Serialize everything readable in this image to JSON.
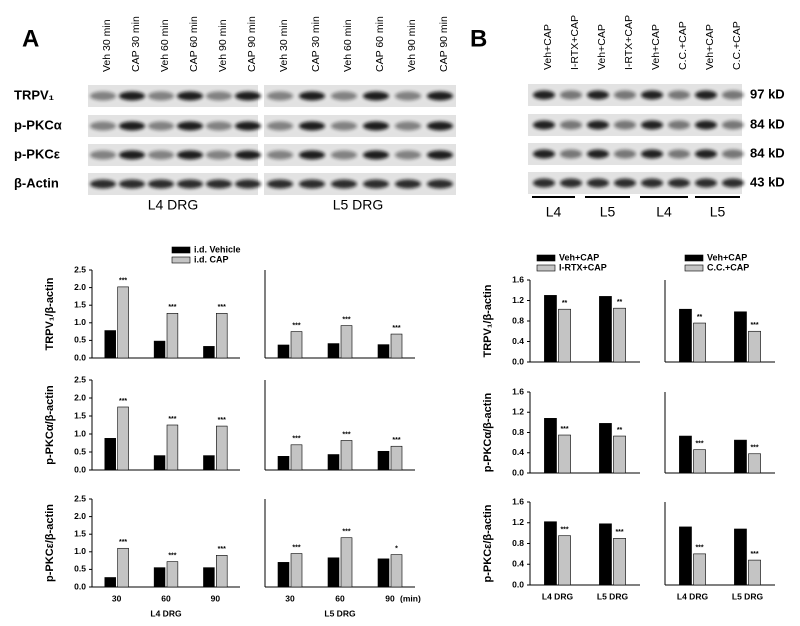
{
  "figure": {
    "panel_a": {
      "letter": "A",
      "lanes": [
        "Veh 30 min",
        "CAP 30 min",
        "Veh 60 min",
        "CAP 60 min",
        "Veh 90 min",
        "CAP 90 min",
        "Veh 30 min",
        "CAP 30 min",
        "Veh 60 min",
        "CAP 60 min",
        "Veh 90 min",
        "CAP 90 min"
      ],
      "rows": [
        "TRPV₁",
        "p-PKCα",
        "p-PKCε",
        "β-Actin"
      ],
      "groups": [
        "L4 DRG",
        "L5 DRG"
      ]
    },
    "panel_b": {
      "letter": "B",
      "lanes": [
        "Veh+CAP",
        "I-RTX+CAP",
        "Veh+CAP",
        "I-RTX+CAP",
        "Veh+CAP",
        "C.C.+CAP",
        "Veh+CAP",
        "C.C.+CAP"
      ],
      "sizes": [
        "97 kD",
        "84 kD",
        "84 kD",
        "43 kD"
      ],
      "groups": [
        "L4",
        "L5",
        "L4",
        "L5"
      ]
    }
  },
  "chart_data": [
    {
      "type": "bar",
      "ylabel": "TRPV₁/β-actin",
      "categories": [
        null,
        null,
        null
      ],
      "legend": "top",
      "series": [
        {
          "name": "i.d. Vehicle",
          "color": "#000000",
          "values": [
            0.78,
            0.48,
            0.33
          ]
        },
        {
          "name": "i.d. CAP",
          "color": "#c4c4c4",
          "values": [
            2.02,
            1.27,
            1.27
          ],
          "annotations": [
            "***",
            "***",
            "***"
          ]
        }
      ],
      "ylim": [
        0,
        2.5
      ],
      "yticks": [
        {
          "value": 0,
          "label": "0.0"
        },
        0.5,
        {
          "value": 1,
          "label": "1.0"
        },
        1.5,
        {
          "value": 2,
          "label": "2.0"
        },
        2.5
      ]
    },
    {
      "type": "bar",
      "categories": [
        null,
        null,
        null
      ],
      "series": [
        {
          "color": "#000000",
          "values": [
            0.37,
            0.41,
            0.38
          ]
        },
        {
          "color": "#c4c4c4",
          "values": [
            0.75,
            0.92,
            0.68
          ],
          "annotations": [
            "***",
            "***",
            "***"
          ]
        }
      ],
      "ylim": [
        0,
        2.5
      ]
    },
    {
      "type": "bar",
      "ylabel": "p-PKCα/β-actin",
      "categories": [
        null,
        null,
        null
      ],
      "series": [
        {
          "color": "#000000",
          "values": [
            0.88,
            0.4,
            0.4
          ]
        },
        {
          "color": "#c4c4c4",
          "values": [
            1.75,
            1.25,
            1.22
          ],
          "annotations": [
            "***",
            "***",
            "***"
          ]
        }
      ],
      "ylim": [
        0,
        2.5
      ],
      "yticks": [
        {
          "value": 0,
          "label": "0.0"
        },
        0.5,
        {
          "value": 1,
          "label": "1.0"
        },
        1.5,
        {
          "value": 2,
          "label": "2.0"
        },
        2.5
      ]
    },
    {
      "type": "bar",
      "categories": [
        null,
        null,
        null
      ],
      "series": [
        {
          "color": "#000000",
          "values": [
            0.38,
            0.43,
            0.52
          ]
        },
        {
          "color": "#c4c4c4",
          "values": [
            0.7,
            0.82,
            0.66
          ],
          "annotations": [
            "***",
            "***",
            "***"
          ]
        }
      ],
      "ylim": [
        0,
        2.5
      ]
    },
    {
      "type": "bar",
      "ylabel": "p-PKCε/β-actin",
      "categories": [
        "30",
        "60",
        "90"
      ],
      "xlabel": "L4 DRG",
      "series": [
        {
          "color": "#000000",
          "values": [
            0.27,
            0.55,
            0.55
          ]
        },
        {
          "color": "#c4c4c4",
          "values": [
            1.1,
            0.72,
            0.9
          ],
          "annotations": [
            "***",
            "***",
            "***"
          ]
        }
      ],
      "ylim": [
        0,
        2.5
      ],
      "yticks": [
        {
          "value": 0,
          "label": "0.0"
        },
        0.5,
        {
          "value": 1,
          "label": "1.0"
        },
        1.5,
        {
          "value": 2,
          "label": "2.0"
        },
        2.5
      ]
    },
    {
      "type": "bar",
      "categories": [
        "30",
        "60",
        "90"
      ],
      "xlabel": "L5 DRG",
      "x_unit": "(min)",
      "series": [
        {
          "color": "#000000",
          "values": [
            0.7,
            0.83,
            0.8
          ]
        },
        {
          "color": "#c4c4c4",
          "values": [
            0.95,
            1.4,
            0.92
          ],
          "annotations": [
            "***",
            "***",
            "*"
          ]
        }
      ],
      "ylim": [
        0,
        2.5
      ]
    },
    {
      "type": "bar",
      "ylabel": "TRPV₁/β-actin",
      "categories": [
        null,
        null
      ],
      "legend": "top",
      "series": [
        {
          "name": "Veh+CAP",
          "color": "#000000",
          "values": [
            1.3,
            1.28
          ]
        },
        {
          "name": "I-RTX+CAP",
          "color": "#c4c4c4",
          "values": [
            1.03,
            1.05
          ],
          "annotations": [
            "**",
            "**"
          ]
        }
      ],
      "ylim": [
        0,
        1.6
      ],
      "yticks": [
        {
          "value": 0,
          "label": "0.0"
        },
        0.4,
        0.8,
        1.2,
        1.6
      ]
    },
    {
      "type": "bar",
      "categories": [
        null,
        null
      ],
      "legend": "top",
      "series": [
        {
          "name": "Veh+CAP",
          "color": "#000000",
          "values": [
            1.03,
            0.98
          ]
        },
        {
          "name": "C.C.+CAP",
          "color": "#c4c4c4",
          "values": [
            0.76,
            0.6
          ],
          "annotations": [
            "**",
            "***"
          ]
        }
      ],
      "ylim": [
        0,
        1.6
      ]
    },
    {
      "type": "bar",
      "ylabel": "p-PKCα/β-actin",
      "categories": [
        null,
        null
      ],
      "series": [
        {
          "color": "#000000",
          "values": [
            1.08,
            0.98
          ]
        },
        {
          "color": "#c4c4c4",
          "values": [
            0.75,
            0.73
          ],
          "annotations": [
            "***",
            "**"
          ]
        }
      ],
      "ylim": [
        0,
        1.6
      ],
      "yticks": [
        {
          "value": 0,
          "label": "0.0"
        },
        0.4,
        0.8,
        1.2,
        1.6
      ]
    },
    {
      "type": "bar",
      "categories": [
        null,
        null
      ],
      "series": [
        {
          "color": "#000000",
          "values": [
            0.73,
            0.65
          ]
        },
        {
          "color": "#c4c4c4",
          "values": [
            0.46,
            0.38
          ],
          "annotations": [
            "***",
            "***"
          ]
        }
      ],
      "ylim": [
        0,
        1.6
      ]
    },
    {
      "type": "bar",
      "ylabel": "p-PKCε/β-actin",
      "categories": [
        "L4 DRG",
        "L5 DRG"
      ],
      "series": [
        {
          "color": "#000000",
          "values": [
            1.22,
            1.18
          ]
        },
        {
          "color": "#c4c4c4",
          "values": [
            0.95,
            0.9
          ],
          "annotations": [
            "***",
            "***"
          ]
        }
      ],
      "ylim": [
        0,
        1.6
      ],
      "yticks": [
        {
          "value": 0,
          "label": "0.0"
        },
        0.4,
        0.8,
        1.2,
        1.6
      ]
    },
    {
      "type": "bar",
      "categories": [
        "L4 DRG",
        "L5 DRG"
      ],
      "series": [
        {
          "color": "#000000",
          "values": [
            1.12,
            1.08
          ]
        },
        {
          "color": "#c4c4c4",
          "values": [
            0.6,
            0.48
          ],
          "annotations": [
            "***",
            "***"
          ]
        }
      ],
      "ylim": [
        0,
        1.6
      ]
    }
  ]
}
